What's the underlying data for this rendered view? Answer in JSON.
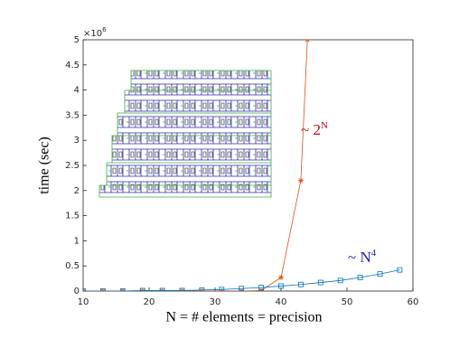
{
  "chart_data": {
    "type": "line",
    "xlabel": "N = # elements = precision",
    "ylabel": "time (sec)",
    "y_multiplier": {
      "base": "×10",
      "exponent": "6"
    },
    "xlim": [
      10,
      60
    ],
    "xticks": [
      10,
      20,
      30,
      40,
      50,
      60
    ],
    "ylim": [
      0,
      5
    ],
    "yticks": [
      0,
      0.5,
      1,
      1.5,
      2,
      2.5,
      3,
      3.5,
      4,
      4.5,
      5
    ],
    "series": [
      {
        "color": "#d95319",
        "marker": "star",
        "x": [
          10,
          13,
          16,
          19,
          22,
          25,
          28,
          31,
          34,
          37,
          40,
          43,
          44
        ],
        "values": [
          0,
          0,
          0,
          0,
          0,
          0,
          0,
          0,
          0,
          0.01,
          0.27,
          2.2,
          5
        ]
      },
      {
        "color": "#0072bd",
        "marker": "square",
        "x": [
          10,
          13,
          16,
          19,
          22,
          25,
          28,
          31,
          34,
          37,
          40,
          43,
          46,
          49,
          52,
          55,
          58
        ],
        "values": [
          0,
          0,
          0,
          0.01,
          0.01,
          0.01,
          0.02,
          0.03,
          0.05,
          0.07,
          0.1,
          0.13,
          0.17,
          0.21,
          0.27,
          0.34,
          0.42
        ]
      }
    ],
    "annotations": [
      {
        "base": "~ 2",
        "exponent": "N",
        "color": "#d00000"
      },
      {
        "base": "~ N",
        "exponent": "4",
        "color": "#2020c0"
      }
    ]
  }
}
